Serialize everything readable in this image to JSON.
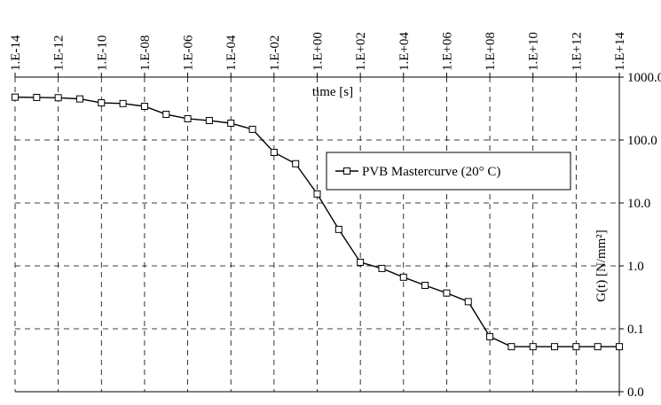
{
  "chart_data": {
    "type": "line",
    "xlabel": "time [s]",
    "ylabel": "G(t) [N/mm²]",
    "xscale": "log",
    "yscale": "log",
    "grid": true,
    "legend": "upper right",
    "xlim": [
      1e-14,
      100000000000000.0
    ],
    "ylim": [
      0.01,
      1000
    ],
    "xticks": [
      {
        "value": 1e-14,
        "label": "1.E-14"
      },
      {
        "value": 1e-12,
        "label": "1.E-12"
      },
      {
        "value": 1e-10,
        "label": "1.E-10"
      },
      {
        "value": 1e-08,
        "label": "1.E-08"
      },
      {
        "value": 1e-06,
        "label": "1.E-06"
      },
      {
        "value": 0.0001,
        "label": "1.E-04"
      },
      {
        "value": 0.01,
        "label": "1.E-02"
      },
      {
        "value": 1,
        "label": "1.E+00"
      },
      {
        "value": 100.0,
        "label": "1.E+02"
      },
      {
        "value": 10000.0,
        "label": "1.E+04"
      },
      {
        "value": 1000000.0,
        "label": "1.E+06"
      },
      {
        "value": 100000000.0,
        "label": "1.E+08"
      },
      {
        "value": 10000000000.0,
        "label": "1.E+10"
      },
      {
        "value": 1000000000000.0,
        "label": "1.E+12"
      },
      {
        "value": 100000000000000.0,
        "label": "1.E+14"
      }
    ],
    "yticks": [
      {
        "value": 1000,
        "label": "1000.0"
      },
      {
        "value": 100,
        "label": "100.0"
      },
      {
        "value": 10,
        "label": "10.0"
      },
      {
        "value": 1,
        "label": "1.0"
      },
      {
        "value": 0.1,
        "label": "0.1"
      },
      {
        "value": 0.01,
        "label": "0.0"
      }
    ],
    "series": [
      {
        "name": "PVB Mastercurve (20° C)",
        "color": "#000000",
        "x": [
          1e-14,
          1e-13,
          1e-12,
          1e-11,
          1e-10,
          1e-09,
          1e-08,
          1e-07,
          1e-06,
          1e-05,
          0.0001,
          0.001,
          0.01,
          0.1,
          1,
          10.0,
          100.0,
          1000.0,
          10000.0,
          100000.0,
          1000000.0,
          10000000.0,
          100000000.0,
          1000000000.0,
          10000000000.0,
          100000000000.0,
          1000000000000.0,
          10000000000000.0,
          100000000000000.0
        ],
        "values": [
          480,
          475,
          470,
          450,
          390,
          380,
          343,
          256,
          218,
          204,
          185,
          148,
          63.6,
          42,
          13.9,
          3.8,
          1.14,
          0.91,
          0.66,
          0.49,
          0.37,
          0.27,
          0.075,
          0.052,
          0.052,
          0.052,
          0.052,
          0.052,
          0.052
        ]
      }
    ]
  }
}
